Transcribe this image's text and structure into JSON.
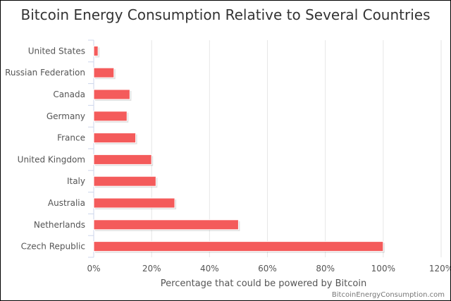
{
  "chart_data": {
    "type": "bar",
    "orientation": "horizontal",
    "title": "Bitcoin Energy Consumption Relative to Several Countries",
    "xlabel": "Percentage that could be powered by Bitcoin",
    "ylabel": "",
    "categories": [
      "United States",
      "Russian Federation",
      "Canada",
      "Germany",
      "France",
      "United Kingdom",
      "Italy",
      "Australia",
      "Netherlands",
      "Czech Republic"
    ],
    "values": [
      1.5,
      7,
      12.5,
      11.5,
      14.5,
      20,
      21.5,
      28,
      50,
      100
    ],
    "xlim": [
      0,
      120
    ],
    "ticks": [
      "0%",
      "20%",
      "40%",
      "60%",
      "80%",
      "100%",
      "120%"
    ],
    "grid": true,
    "bar_color": "#f45b5b",
    "credit": "BitcoinEnergyConsumption.com"
  }
}
